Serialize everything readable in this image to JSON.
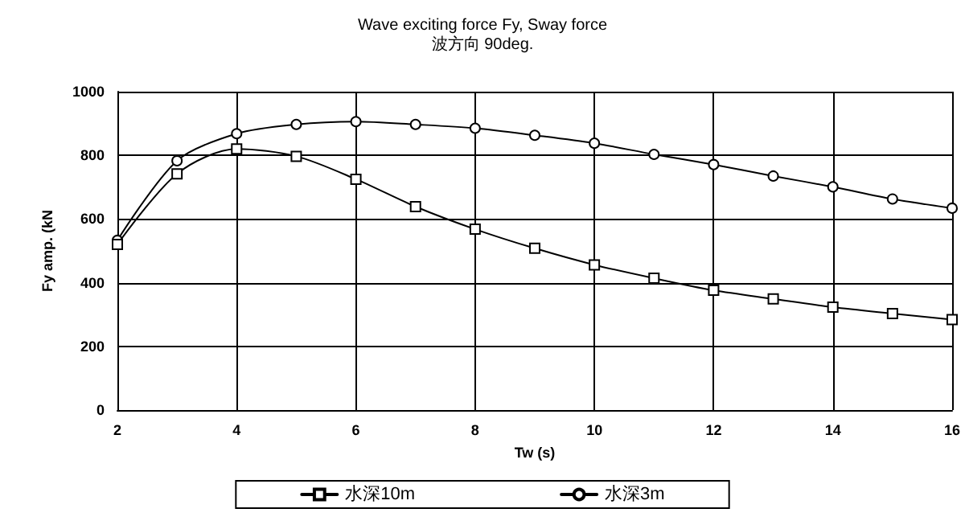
{
  "chart_data": {
    "type": "line",
    "title": "Wave exciting force Fy, Sway force",
    "subtitle": "波方向 90deg.",
    "xlabel": "Tw (s)",
    "ylabel": "Fy amp. (kN",
    "x": [
      2,
      3,
      4,
      5,
      6,
      7,
      8,
      9,
      10,
      11,
      12,
      13,
      14,
      15,
      16
    ],
    "series": [
      {
        "name": "水深10m",
        "color": "#000000",
        "marker": "square",
        "values": [
          520,
          742,
          820,
          797,
          725,
          639,
          568,
          508,
          456,
          414,
          376,
          349,
          323,
          303,
          284
        ]
      },
      {
        "name": "水深3m",
        "color": "#000000",
        "marker": "circle",
        "values": [
          533,
          783,
          868,
          897,
          906,
          897,
          885,
          863,
          838,
          803,
          771,
          735,
          701,
          663,
          634
        ]
      }
    ],
    "xlim": [
      2,
      16
    ],
    "xticks": [
      2,
      4,
      6,
      8,
      10,
      12,
      14,
      16
    ],
    "ylim": [
      0,
      1000
    ],
    "yticks": [
      0,
      200,
      400,
      600,
      800,
      1000
    ],
    "grid": true,
    "legend": "bottom",
    "line_style": "solid"
  }
}
